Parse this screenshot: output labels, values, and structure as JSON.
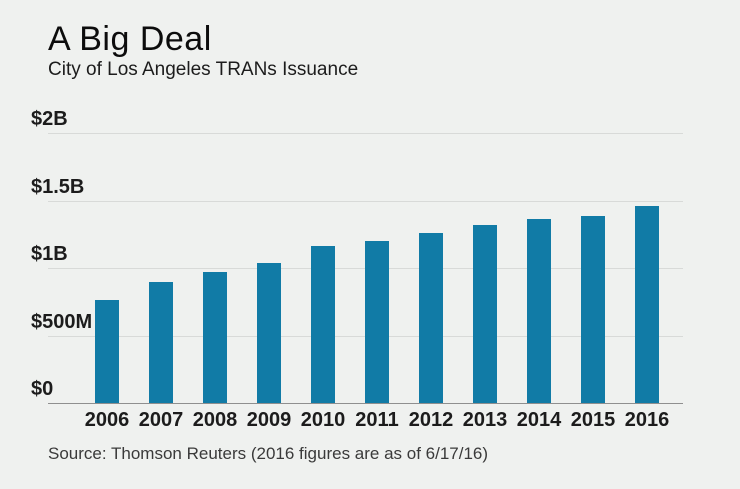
{
  "page": {
    "background_color": "#eff1ef"
  },
  "header": {
    "title": "A Big Deal",
    "subtitle": "City of Los Angeles TRANs Issuance"
  },
  "chart_data": {
    "type": "bar",
    "title": "A Big Deal",
    "subtitle": "City of Los Angeles TRANs Issuance",
    "categories": [
      "2006",
      "2007",
      "2008",
      "2009",
      "2010",
      "2011",
      "2012",
      "2013",
      "2014",
      "2015",
      "2016"
    ],
    "values_musd": [
      760,
      900,
      970,
      1035,
      1160,
      1200,
      1260,
      1320,
      1365,
      1385,
      1460
    ],
    "unit": "USD millions",
    "ylim": [
      0,
      2000
    ],
    "yticks": [
      {
        "value": 0,
        "label": "$0"
      },
      {
        "value": 500,
        "label": "$500M"
      },
      {
        "value": 1000,
        "label": "$1B"
      },
      {
        "value": 1500,
        "label": "$1.5B"
      },
      {
        "value": 2000,
        "label": "$2B"
      }
    ],
    "bar_color": "#117ba6",
    "gridline_color": "#d8dad8",
    "grid": true,
    "legend": "none"
  },
  "footer": {
    "source": "Source: Thomson Reuters (2016 figures are as of 6/17/16)"
  }
}
